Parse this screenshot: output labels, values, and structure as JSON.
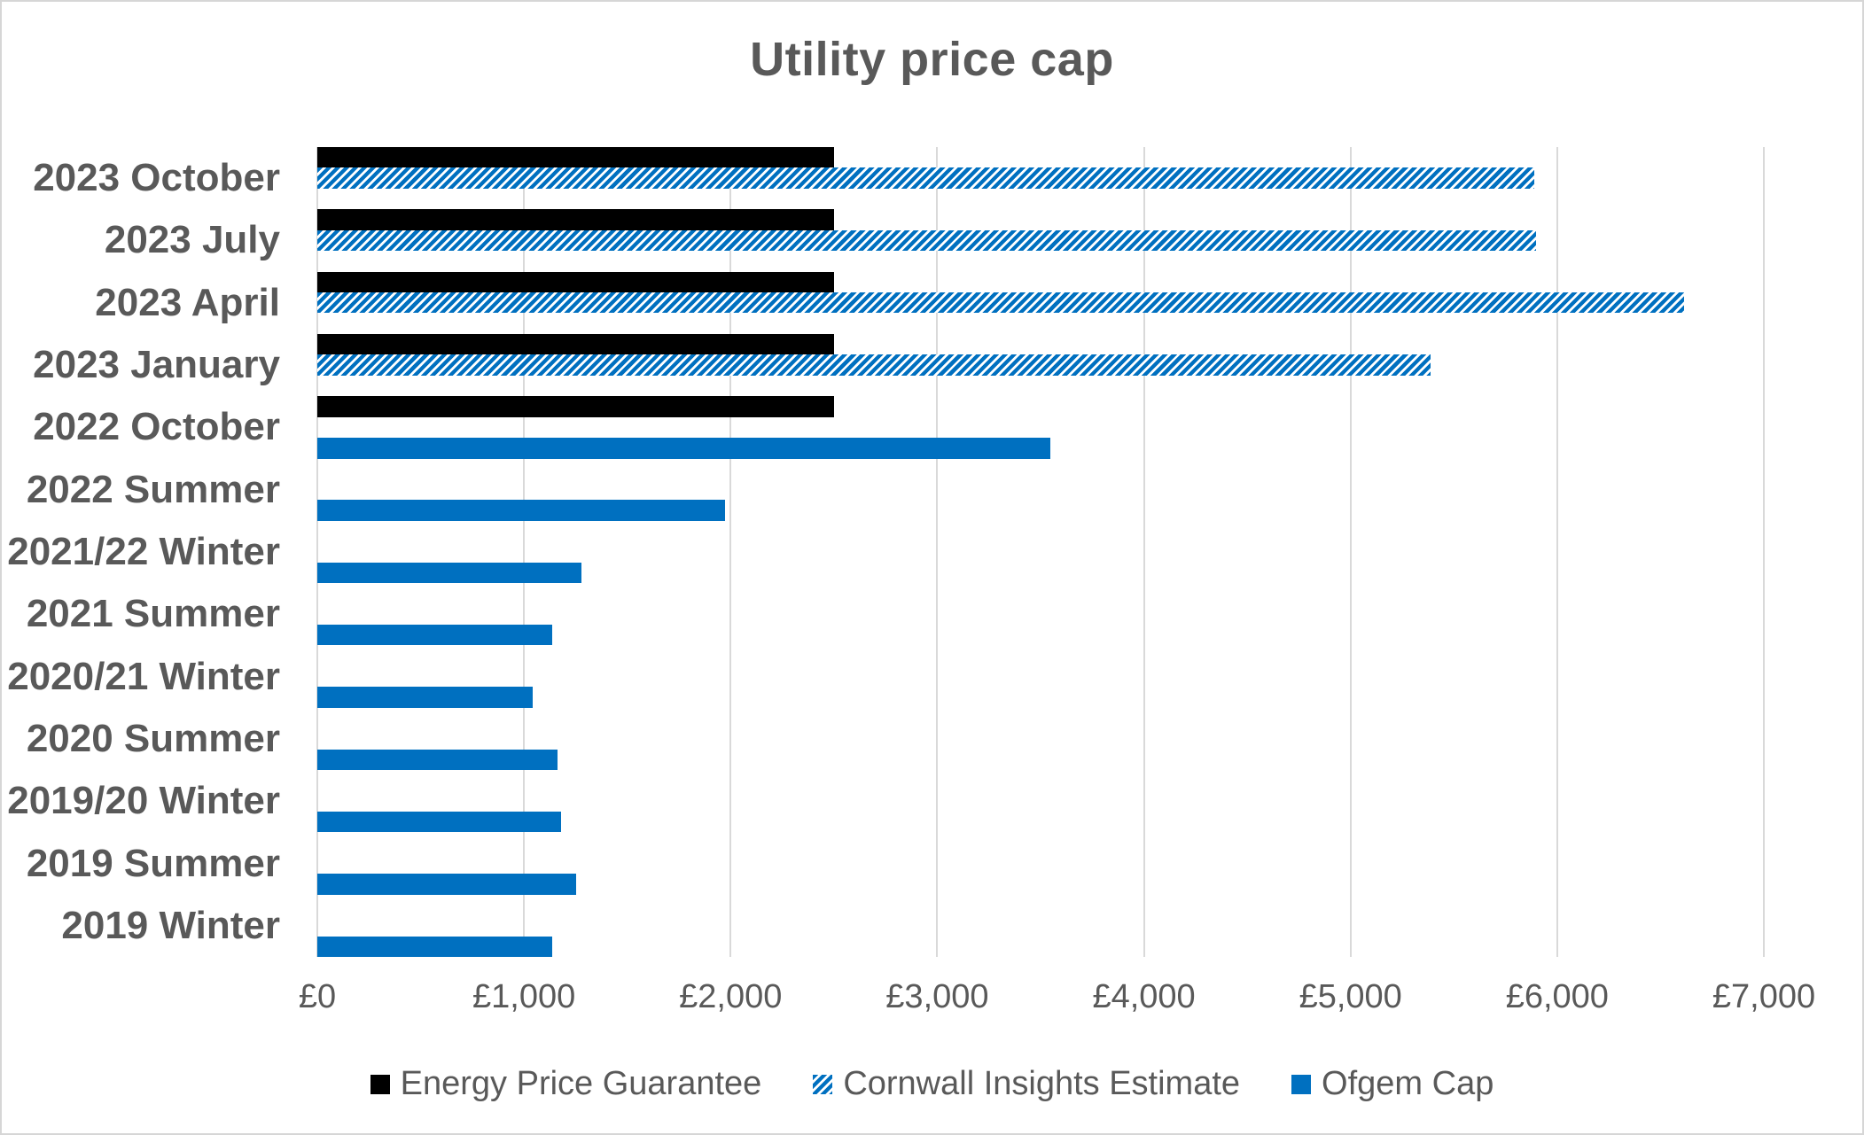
{
  "title": "Utility price cap",
  "colors": {
    "bar_black": "#000000",
    "bar_blue": "#0070C0",
    "gridline": "#d9d9d9",
    "text": "#595959"
  },
  "chart_data": {
    "type": "bar",
    "orientation": "horizontal",
    "title": "Utility price cap",
    "xlabel": "",
    "ylabel": "",
    "xlim": [
      0,
      7000
    ],
    "grid": "vertical",
    "legend_position": "bottom",
    "x_tick_values": [
      0,
      1000,
      2000,
      3000,
      4000,
      5000,
      6000,
      7000
    ],
    "x_tick_labels": [
      "£0",
      "£1,000",
      "£2,000",
      "£3,000",
      "£4,000",
      "£5,000",
      "£6,000",
      "£7,000"
    ],
    "categories": [
      "2023 October",
      "2023 July",
      "2023 April",
      "2023 January",
      "2022 October",
      "2022 Summer",
      "2021/22 Winter",
      "2021 Summer",
      "2020/21 Winter",
      "2020 Summer",
      "2019/20 Winter",
      "2019 Summer",
      "2019 Winter"
    ],
    "series": [
      {
        "name": "Energy Price Guarantee",
        "style": "solid-black",
        "color": "#000000",
        "values": [
          2500,
          2500,
          2500,
          2500,
          2500,
          null,
          null,
          null,
          null,
          null,
          null,
          null,
          null
        ]
      },
      {
        "name": "Cornwall Insights Estimate",
        "style": "hatched-blue",
        "color": "#0070C0",
        "pattern": "diagonal-stripes",
        "values": [
          5887,
          5897,
          6616,
          5387,
          null,
          null,
          null,
          null,
          null,
          null,
          null,
          null,
          null
        ]
      },
      {
        "name": "Ofgem Cap",
        "style": "solid-blue",
        "color": "#0070C0",
        "values": [
          null,
          null,
          null,
          null,
          3549,
          1971,
          1277,
          1138,
          1042,
          1162,
          1179,
          1254,
          1137
        ]
      }
    ]
  }
}
